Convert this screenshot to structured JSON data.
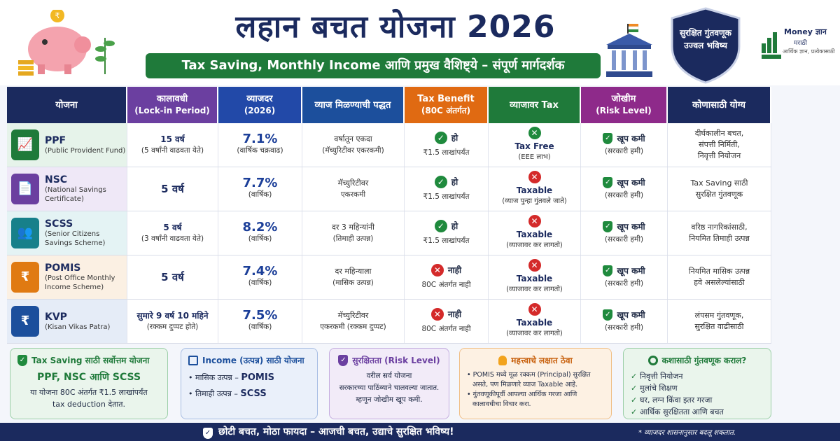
{
  "header": {
    "title": "लहान बचत योजना 2026",
    "subtitle": "Tax Saving, Monthly Income आणि प्रमुख वैशिष्ट्ये – संपूर्ण मार्गदर्शक",
    "badge_line1": "सुरक्षित गुंतवणूक",
    "badge_line2": "उज्वल भविष्य",
    "logo_title": "Money ज्ञान",
    "logo_sub1": "मराठी",
    "logo_sub2": "आर्थिक ज्ञान, प्रत्येकासाठी"
  },
  "table": {
    "headers": [
      {
        "l1": "योजना",
        "l2": "",
        "color": "#1b2a5e"
      },
      {
        "l1": "कालावधी",
        "l2": "(Lock-in Period)",
        "color": "#6b3fa0"
      },
      {
        "l1": "व्याजदर",
        "l2": "(2026)",
        "color": "#2249a8"
      },
      {
        "l1": "व्याज मिळण्याची पद्धत",
        "l2": "",
        "color": "#1c4f9c"
      },
      {
        "l1": "Tax Benefit",
        "l2": "(80C अंतर्गत)",
        "color": "#e06a12"
      },
      {
        "l1": "व्याजावर Tax",
        "l2": "",
        "color": "#1f7a3a"
      },
      {
        "l1": "जोखीम",
        "l2": "(Risk Level)",
        "color": "#8e2a8a"
      },
      {
        "l1": "कोणासाठी योग्य",
        "l2": "",
        "color": "#1b2a5e"
      }
    ],
    "rows": [
      {
        "name": "PPF",
        "full": "(Public Provident Fund)",
        "icon": "chart-up-icon",
        "icon_color": "#1f7a3a",
        "bg": "#e6f3ea",
        "lock1": "15 वर्ष",
        "lock2": "(5 वर्षांनी वाढवता येते)",
        "rate": "7.1%",
        "rate_sub": "(वार्षिक चक्रवाढ)",
        "mode1": "वर्षातून एकदा",
        "mode2": "(मॅच्युरिटीवर एकरकमी)",
        "tax_ok": true,
        "tax1": "हो",
        "tax2": "₹1.5 लाखांपर्यंत",
        "int_free": true,
        "int1": "Tax Free",
        "int2": "(EEE लाभ)",
        "risk1": "खूप कमी",
        "risk2": "(सरकारी हमी)",
        "for1": "दीर्घकालीन बचत,",
        "for2": "संपत्ती निर्मिती,",
        "for3": "निवृत्ती नियोजन"
      },
      {
        "name": "NSC",
        "full": "(National Savings Certificate)",
        "icon": "certificate-icon",
        "icon_color": "#6b3fa0",
        "bg": "#efe8f7",
        "lock1": "5 वर्ष",
        "lock2": "",
        "rate": "7.7%",
        "rate_sub": "(वार्षिक)",
        "mode1": "मॅच्युरिटीवर",
        "mode2": "एकरकमी",
        "tax_ok": true,
        "tax1": "हो",
        "tax2": "₹1.5 लाखांपर्यंत",
        "int_free": false,
        "int1": "Taxable",
        "int2": "(व्याज पुन्हा गुंतवले जाते)",
        "risk1": "खूप कमी",
        "risk2": "(सरकारी हमी)",
        "for1": "Tax Saving साठी",
        "for2": "सुरक्षित गुंतवणूक",
        "for3": ""
      },
      {
        "name": "SCSS",
        "full": "(Senior Citizens Savings Scheme)",
        "icon": "seniors-icon",
        "icon_color": "#17808a",
        "bg": "#e4f3f4",
        "lock1": "5 वर्ष",
        "lock2": "(3 वर्षांनी वाढवता येते)",
        "rate": "8.2%",
        "rate_sub": "(वार्षिक)",
        "mode1": "दर 3 महिन्यांनी",
        "mode2": "(तिमाही उत्पन्न)",
        "tax_ok": true,
        "tax1": "हो",
        "tax2": "₹1.5 लाखांपर्यंत",
        "int_free": false,
        "int1": "Taxable",
        "int2": "(व्याजावर कर लागतो)",
        "risk1": "खूप कमी",
        "risk2": "(सरकारी हमी)",
        "for1": "वरिष्ठ नागरिकांसाठी,",
        "for2": "नियमित तिमाही उत्पन्न",
        "for3": ""
      },
      {
        "name": "POMIS",
        "full": "(Post Office Monthly Income Scheme)",
        "icon": "envelope-rupee-icon",
        "icon_color": "#e07a12",
        "bg": "#fbf0e3",
        "lock1": "5 वर्ष",
        "lock2": "",
        "rate": "7.4%",
        "rate_sub": "(वार्षिक)",
        "mode1": "दर महिन्याला",
        "mode2": "(मासिक उत्पन्न)",
        "tax_ok": false,
        "tax1": "नाही",
        "tax2": "80C अंतर्गत नाही",
        "int_free": false,
        "int1": "Taxable",
        "int2": "(व्याजावर कर लागतो)",
        "risk1": "खूप कमी",
        "risk2": "(सरकारी हमी)",
        "for1": "नियमित मासिक उत्पन्न",
        "for2": "हवे असलेल्यांसाठी",
        "for3": ""
      },
      {
        "name": "KVP",
        "full": "(Kisan Vikas Patra)",
        "icon": "money-bag-icon",
        "icon_color": "#1c4f9c",
        "bg": "#e5ecf7",
        "lock1": "सुमारे 9 वर्ष 10 महिने",
        "lock2": "(रक्कम दुप्पट होते)",
        "rate": "7.5%",
        "rate_sub": "(वार्षिक)",
        "mode1": "मॅच्युरिटीवर",
        "mode2": "एकरकमी (रक्कम दुप्पट)",
        "tax_ok": false,
        "tax1": "नाही",
        "tax2": "80C अंतर्गत नाही",
        "int_free": false,
        "int1": "Taxable",
        "int2": "(व्याजावर कर लागतो)",
        "risk1": "खूप कमी",
        "risk2": "(सरकारी हमी)",
        "for1": "लंपसम गुंतवणूक,",
        "for2": "सुरक्षित वाढीसाठी",
        "for3": ""
      }
    ]
  },
  "cards": {
    "c1": {
      "title": "Tax Saving साठी सर्वोत्तम योजना",
      "big": "PPF, NSC आणि SCSS",
      "l1": "या योजना 80C अंतर्गत ₹1.5 लाखांपर्यंत",
      "l2": "tax deduction देतात."
    },
    "c2": {
      "title": "Income (उत्पन्न) साठी योजना",
      "l1a": "• मासिक उत्पन्न – ",
      "l1b": "POMIS",
      "l2a": "• तिमाही उत्पन्न – ",
      "l2b": "SCSS"
    },
    "c3": {
      "title": "सुरक्षितता (Risk Level)",
      "l1": "वरील सर्व योजना",
      "l2": "सरकारच्या पाठिंब्याने चालवल्या जातात.",
      "l3": "म्हणून जोखीम खूप कमी."
    },
    "c4": {
      "title": "महत्त्वाचे लक्षात ठेवा",
      "l1": "• POMIS मध्ये मूळ रक्कम (Principal) सुरक्षित",
      "l2": "असते, पण मिळणारे व्याज Taxable आहे.",
      "l3": "• गुंतवणूकीपूर्वी आपल्या आर्थिक गरजा आणि",
      "l4": "कालावधीचा विचार करा."
    },
    "c5": {
      "title": "कशासाठी गुंतवणूक कराल?",
      "l1": "निवृत्ती नियोजन",
      "l2": "मुलांचे शिक्षण",
      "l3": "घर, लग्न किंवा इतर गरजा",
      "l4": "आर्थिक सुरक्षितता आणि बचत"
    }
  },
  "footer": {
    "text": "छोटी बचत, मोठा फायदा – आजची बचत, उद्याचे सुरक्षित भविष्य!",
    "note": "* व्याजदर शासनानुसार बदलू शकतात."
  }
}
